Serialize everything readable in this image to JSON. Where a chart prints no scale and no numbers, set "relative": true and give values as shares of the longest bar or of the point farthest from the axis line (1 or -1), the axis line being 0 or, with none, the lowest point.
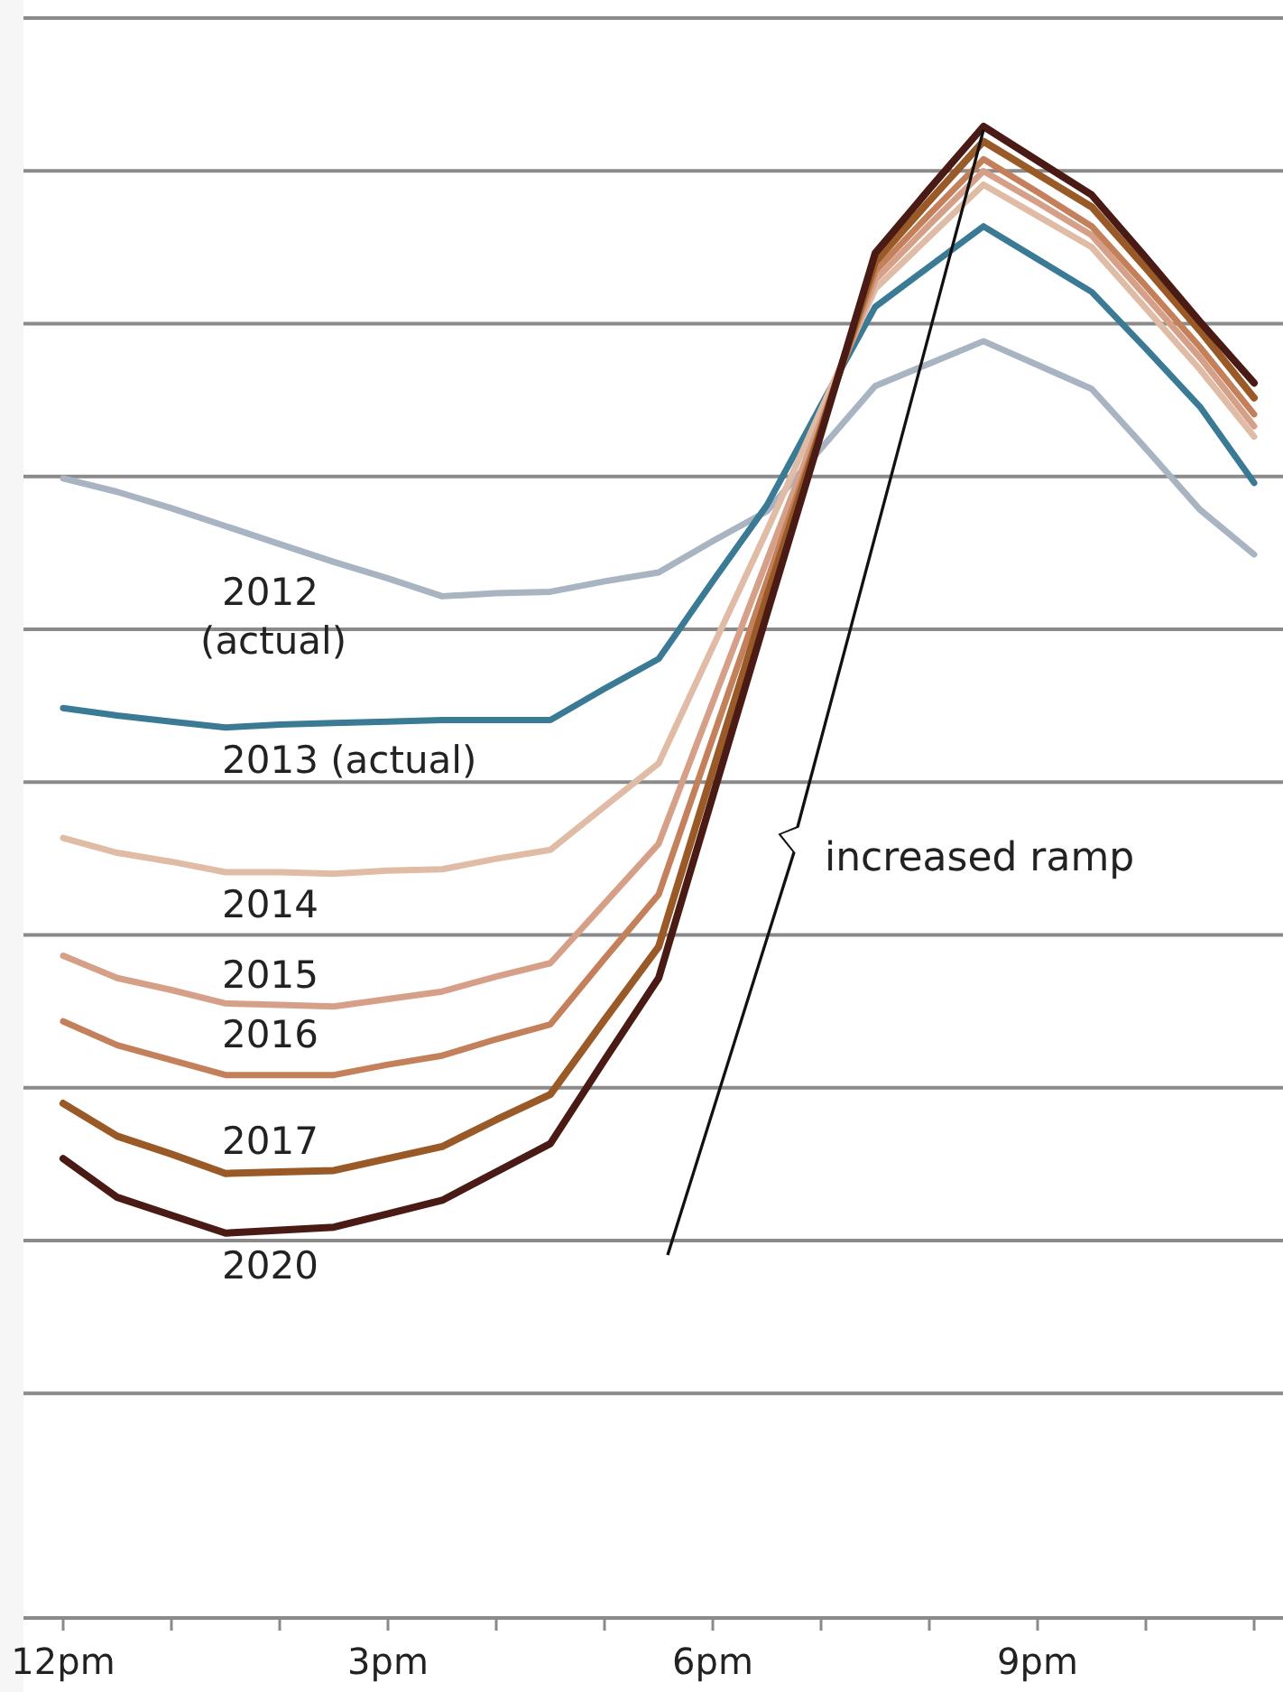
{
  "chart_data": {
    "type": "line",
    "relative": true,
    "categories": [
      "12pm",
      null,
      null,
      null,
      null,
      null,
      "3pm",
      null,
      null,
      null,
      null,
      null,
      "6pm",
      null,
      null,
      null,
      null,
      null,
      "9pm",
      null,
      null,
      null,
      null
    ],
    "grid": "y",
    "legend": false,
    "marker": "none",
    "line_style": "solid",
    "series": [
      {
        "name": "2012 (actual)",
        "color": "#a9b4c2",
        "values": [
          0.764,
          0.755,
          0.744,
          0.732,
          0.72,
          0.708,
          0.697,
          0.685,
          0.687,
          0.688,
          0.695,
          0.701,
          0.722,
          0.742,
          0.784,
          0.826,
          0.841,
          0.856,
          0.84,
          0.824,
          0.784,
          0.743,
          0.713
        ]
      },
      {
        "name": "2013 (actual)",
        "color": "#3a7a94",
        "values": [
          0.61,
          0.605,
          0.601,
          0.597,
          0.599,
          0.6,
          0.601,
          0.602,
          0.602,
          0.602,
          0.623,
          0.643,
          0.695,
          0.746,
          0.813,
          0.879,
          0.906,
          0.933,
          0.911,
          0.889,
          0.851,
          0.812,
          0.761
        ]
      },
      {
        "name": "2014",
        "color": "#e0bca6",
        "values": [
          0.523,
          0.513,
          0.507,
          0.5,
          0.5,
          0.499,
          0.501,
          0.502,
          0.509,
          0.515,
          0.544,
          0.573,
          0.651,
          0.729,
          0.81,
          0.891,
          0.926,
          0.961,
          0.94,
          0.919,
          0.878,
          0.837,
          0.792
        ]
      },
      {
        "name": "2015",
        "color": "#d6a088",
        "values": [
          0.444,
          0.429,
          0.421,
          0.412,
          0.411,
          0.41,
          0.415,
          0.42,
          0.43,
          0.439,
          0.479,
          0.519,
          0.614,
          0.709,
          0.803,
          0.897,
          0.934,
          0.97,
          0.949,
          0.927,
          0.886,
          0.845,
          0.799
        ]
      },
      {
        "name": "2016",
        "color": "#c4805a",
        "values": [
          0.4,
          0.384,
          0.374,
          0.364,
          0.364,
          0.364,
          0.371,
          0.377,
          0.388,
          0.398,
          0.442,
          0.485,
          0.59,
          0.695,
          0.799,
          0.903,
          0.941,
          0.978,
          0.956,
          0.933,
          0.893,
          0.852,
          0.807
        ]
      },
      {
        "name": "2017",
        "color": "#9a5a28",
        "values": [
          0.345,
          0.323,
          0.311,
          0.298,
          0.299,
          0.3,
          0.308,
          0.316,
          0.334,
          0.351,
          0.401,
          0.45,
          0.568,
          0.685,
          0.797,
          0.909,
          0.95,
          0.99,
          0.968,
          0.946,
          0.905,
          0.863,
          0.818
        ]
      },
      {
        "name": "2020",
        "color": "#4a1a14",
        "values": [
          0.308,
          0.282,
          0.27,
          0.258,
          0.26,
          0.262,
          0.271,
          0.28,
          0.299,
          0.318,
          0.374,
          0.429,
          0.551,
          0.673,
          0.794,
          0.915,
          0.958,
          1,
          0.977,
          0.954,
          0.912,
          0.869,
          0.828
        ]
      }
    ],
    "annotations": [
      "increased ramp"
    ]
  }
}
